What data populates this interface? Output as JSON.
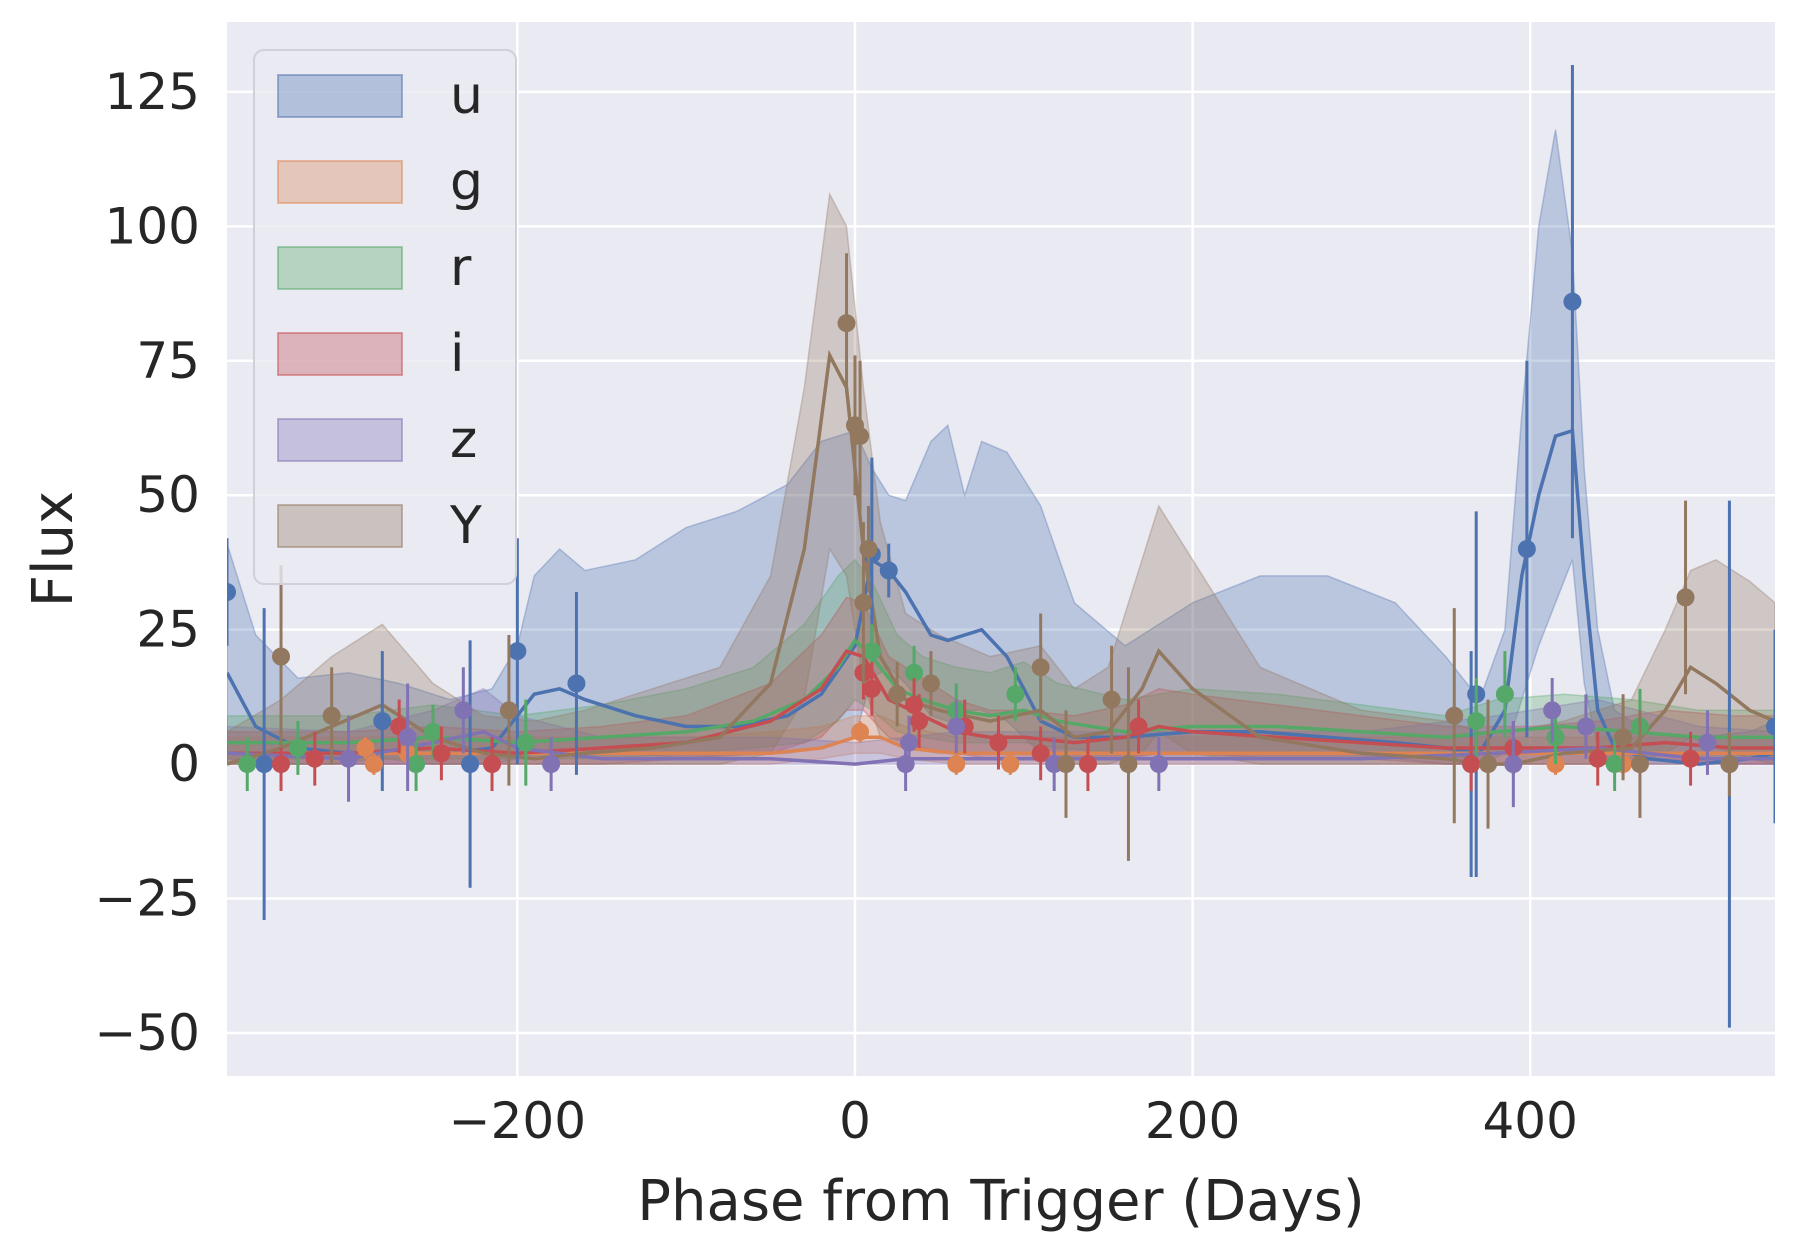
{
  "chart_data": {
    "type": "line",
    "title": "",
    "xlabel": "Phase from Trigger (Days)",
    "ylabel": "Flux",
    "xlim": [
      -372,
      545
    ],
    "ylim": [
      -58,
      138
    ],
    "xticks": [
      -200,
      0,
      200,
      400
    ],
    "xtick_labels": [
      "−200",
      "0",
      "200",
      "400"
    ],
    "yticks": [
      -50,
      -25,
      0,
      25,
      50,
      75,
      100,
      125
    ],
    "ytick_labels": [
      "−50",
      "−25",
      "0",
      "25",
      "50",
      "75",
      "100",
      "125"
    ],
    "grid": true,
    "legend_position": "upper left",
    "background_color": "#eaeaf2",
    "grid_color": "#ffffff",
    "series": [
      {
        "name": "u",
        "color": "#4c72b0",
        "model_x": [
          -372,
          -355,
          -330,
          -300,
          -270,
          -240,
          -215,
          -200,
          -190,
          -175,
          -160,
          -130,
          -100,
          -70,
          -40,
          -20,
          0,
          10,
          20,
          30,
          45,
          55,
          65,
          75,
          90,
          110,
          130,
          160,
          200,
          240,
          280,
          320,
          350,
          370,
          385,
          395,
          405,
          415,
          425,
          432,
          440,
          450,
          470,
          500,
          530,
          545
        ],
        "model_y": [
          17,
          7,
          3,
          2,
          2,
          2,
          3,
          9,
          13,
          14,
          12,
          9,
          7,
          7,
          9,
          13,
          22,
          38,
          36,
          32,
          24,
          23,
          24,
          25,
          20,
          8,
          5,
          5,
          6,
          6,
          5,
          4,
          3,
          2,
          10,
          35,
          50,
          61,
          62,
          35,
          10,
          3,
          1,
          0,
          1,
          2
        ],
        "band_upper": [
          41,
          24,
          16,
          17,
          15,
          12,
          14,
          22,
          35,
          40,
          36,
          38,
          44,
          47,
          52,
          60,
          62,
          55,
          50,
          49,
          60,
          63,
          50,
          60,
          58,
          48,
          30,
          22,
          30,
          35,
          35,
          30,
          20,
          12,
          25,
          65,
          100,
          118,
          95,
          55,
          25,
          10,
          6,
          5,
          6,
          8
        ],
        "band_lower": [
          1,
          0,
          0,
          0,
          0,
          0,
          0,
          1,
          2,
          3,
          2,
          2,
          1,
          2,
          2,
          3,
          5,
          16,
          18,
          15,
          9,
          8,
          10,
          10,
          8,
          2,
          1,
          1,
          1,
          1,
          1,
          1,
          0,
          0,
          2,
          12,
          22,
          30,
          38,
          15,
          3,
          0,
          0,
          0,
          0,
          0
        ],
        "obs_x": [
          -372,
          -350,
          -280,
          -228,
          -200,
          -165,
          10,
          20,
          365,
          368,
          398,
          425,
          518,
          545
        ],
        "obs_y": [
          32,
          0,
          8,
          0,
          21,
          15,
          39,
          36,
          0,
          13,
          40,
          86,
          0,
          7
        ],
        "obs_err": [
          10,
          29,
          13,
          23,
          21,
          17,
          18,
          5,
          21,
          34,
          35,
          44,
          49,
          18
        ]
      },
      {
        "name": "g",
        "color": "#dd8452",
        "model_x": [
          -372,
          -300,
          -200,
          -100,
          -50,
          -20,
          0,
          15,
          30,
          60,
          100,
          150,
          200,
          300,
          380,
          450,
          545
        ],
        "model_y": [
          2,
          2,
          2,
          2,
          2,
          3,
          5,
          5,
          3,
          2,
          2,
          2,
          2,
          2,
          2,
          2,
          2
        ],
        "band_upper": [
          5,
          5,
          5,
          5,
          6,
          7,
          9,
          9,
          7,
          5,
          5,
          5,
          5,
          5,
          5,
          5,
          5
        ],
        "band_lower": [
          0,
          0,
          0,
          0,
          0,
          1,
          2,
          2,
          1,
          0,
          0,
          0,
          0,
          0,
          0,
          0,
          0
        ],
        "obs_x": [
          -290,
          -285,
          -265,
          3,
          60,
          92,
          390,
          415,
          455
        ],
        "obs_y": [
          3,
          0,
          2,
          6,
          0,
          0,
          0,
          0,
          0
        ],
        "obs_err": [
          2,
          2,
          2,
          2,
          2,
          2,
          2,
          2,
          2
        ]
      },
      {
        "name": "r",
        "color": "#55a868",
        "model_x": [
          -372,
          -300,
          -250,
          -200,
          -150,
          -100,
          -60,
          -30,
          -10,
          0,
          10,
          25,
          40,
          60,
          80,
          100,
          120,
          160,
          200,
          250,
          300,
          350,
          380,
          420,
          460,
          500,
          545
        ],
        "model_y": [
          4,
          4,
          5,
          4,
          5,
          6,
          8,
          12,
          18,
          23,
          20,
          14,
          12,
          10,
          9,
          10,
          8,
          6,
          7,
          7,
          6,
          5,
          6,
          7,
          6,
          5,
          5
        ],
        "band_upper": [
          9,
          9,
          11,
          9,
          11,
          14,
          18,
          26,
          35,
          38,
          34,
          24,
          20,
          18,
          17,
          19,
          15,
          12,
          14,
          13,
          11,
          9,
          12,
          13,
          12,
          10,
          10
        ],
        "band_lower": [
          1,
          1,
          1,
          1,
          1,
          2,
          3,
          4,
          8,
          12,
          10,
          6,
          5,
          4,
          4,
          4,
          3,
          2,
          2,
          2,
          2,
          1,
          2,
          3,
          2,
          1,
          1
        ],
        "obs_x": [
          -360,
          -330,
          -260,
          -250,
          -195,
          10,
          35,
          60,
          95,
          368,
          385,
          415,
          450,
          465
        ],
        "obs_y": [
          0,
          3,
          0,
          6,
          4,
          21,
          17,
          10,
          13,
          8,
          13,
          5,
          0,
          7
        ],
        "obs_err": [
          5,
          5,
          5,
          5,
          8,
          5,
          5,
          5,
          5,
          8,
          8,
          5,
          5,
          7
        ]
      },
      {
        "name": "i",
        "color": "#c44e52",
        "model_x": [
          -372,
          -300,
          -250,
          -200,
          -150,
          -100,
          -50,
          -20,
          -5,
          5,
          20,
          40,
          60,
          80,
          100,
          130,
          160,
          180,
          200,
          250,
          300,
          350,
          400,
          440,
          480,
          520,
          545
        ],
        "model_y": [
          2,
          2,
          3,
          2,
          3,
          4,
          8,
          14,
          21,
          20,
          12,
          9,
          6,
          5,
          5,
          4,
          5,
          7,
          6,
          5,
          4,
          3,
          3,
          3,
          4,
          3,
          3
        ],
        "band_upper": [
          6,
          6,
          7,
          6,
          7,
          9,
          15,
          24,
          31,
          30,
          20,
          16,
          12,
          10,
          10,
          9,
          11,
          14,
          13,
          11,
          9,
          7,
          7,
          8,
          10,
          9,
          9
        ],
        "band_lower": [
          0,
          0,
          0,
          0,
          0,
          1,
          2,
          5,
          10,
          10,
          5,
          3,
          2,
          1,
          1,
          1,
          1,
          2,
          2,
          1,
          1,
          0,
          0,
          0,
          1,
          0,
          0
        ],
        "obs_x": [
          -340,
          -320,
          -270,
          -245,
          -215,
          5,
          10,
          35,
          38,
          65,
          85,
          110,
          138,
          168,
          365,
          390,
          440,
          495
        ],
        "obs_y": [
          0,
          1,
          7,
          2,
          0,
          17,
          14,
          11,
          8,
          7,
          4,
          2,
          0,
          7,
          0,
          3,
          1,
          1
        ],
        "obs_err": [
          5,
          5,
          5,
          5,
          5,
          5,
          5,
          5,
          5,
          5,
          5,
          5,
          5,
          5,
          5,
          5,
          5,
          5
        ]
      },
      {
        "name": "z",
        "color": "#8172b3",
        "model_x": [
          -372,
          -300,
          -250,
          -220,
          -200,
          -150,
          -100,
          -50,
          0,
          30,
          60,
          100,
          150,
          200,
          300,
          380,
          440,
          500,
          545
        ],
        "model_y": [
          2,
          1,
          4,
          6,
          3,
          1,
          1,
          1,
          0,
          1,
          1,
          1,
          1,
          1,
          1,
          2,
          3,
          1,
          1
        ],
        "band_upper": [
          7,
          6,
          10,
          14,
          9,
          5,
          5,
          5,
          4,
          5,
          6,
          6,
          6,
          6,
          6,
          9,
          12,
          7,
          6
        ],
        "band_lower": [
          0,
          0,
          0,
          0,
          0,
          0,
          0,
          0,
          0,
          0,
          0,
          0,
          0,
          0,
          0,
          0,
          0,
          0,
          0
        ],
        "obs_x": [
          -300,
          -265,
          -232,
          -180,
          30,
          32,
          60,
          118,
          180,
          390,
          413,
          433,
          505
        ],
        "obs_y": [
          1,
          5,
          10,
          0,
          0,
          4,
          7,
          0,
          0,
          0,
          10,
          7,
          4
        ],
        "obs_err": [
          8,
          10,
          8,
          5,
          5,
          5,
          5,
          5,
          5,
          8,
          6,
          6,
          6
        ]
      },
      {
        "name": "Y",
        "color": "#937860",
        "model_x": [
          -372,
          -340,
          -310,
          -280,
          -250,
          -220,
          -190,
          -160,
          -120,
          -80,
          -50,
          -30,
          -15,
          -5,
          5,
          15,
          30,
          50,
          80,
          110,
          130,
          150,
          170,
          180,
          200,
          240,
          300,
          350,
          370,
          390,
          420,
          460,
          480,
          495,
          510,
          530,
          545
        ],
        "model_y": [
          0,
          3,
          7,
          11,
          5,
          2,
          1,
          2,
          3,
          5,
          15,
          40,
          76,
          70,
          40,
          20,
          12,
          10,
          8,
          10,
          5,
          6,
          14,
          21,
          14,
          5,
          2,
          1,
          0,
          0,
          2,
          3,
          10,
          18,
          15,
          10,
          8
        ],
        "band_upper": [
          6,
          12,
          20,
          26,
          15,
          9,
          8,
          10,
          14,
          18,
          35,
          70,
          106,
          100,
          70,
          45,
          28,
          24,
          20,
          22,
          14,
          18,
          38,
          48,
          38,
          18,
          10,
          8,
          6,
          6,
          8,
          12,
          25,
          36,
          38,
          34,
          30
        ],
        "band_lower": [
          0,
          0,
          0,
          1,
          0,
          0,
          0,
          0,
          0,
          0,
          2,
          12,
          40,
          35,
          15,
          5,
          3,
          2,
          2,
          2,
          0,
          0,
          2,
          6,
          2,
          0,
          0,
          0,
          0,
          0,
          0,
          0,
          2,
          5,
          3,
          1,
          0
        ],
        "obs_x": [
          -340,
          -310,
          -205,
          -5,
          0,
          3,
          5,
          8,
          25,
          45,
          110,
          125,
          152,
          162,
          355,
          375,
          455,
          465,
          492,
          518
        ],
        "obs_y": [
          20,
          9,
          10,
          82,
          63,
          61,
          30,
          40,
          13,
          15,
          18,
          0,
          12,
          0,
          9,
          0,
          5,
          0,
          31,
          0
        ],
        "obs_err": [
          17,
          9,
          14,
          13,
          13,
          14,
          15,
          8,
          6,
          6,
          10,
          10,
          10,
          18,
          20,
          12,
          8,
          10,
          18,
          6
        ]
      }
    ]
  }
}
